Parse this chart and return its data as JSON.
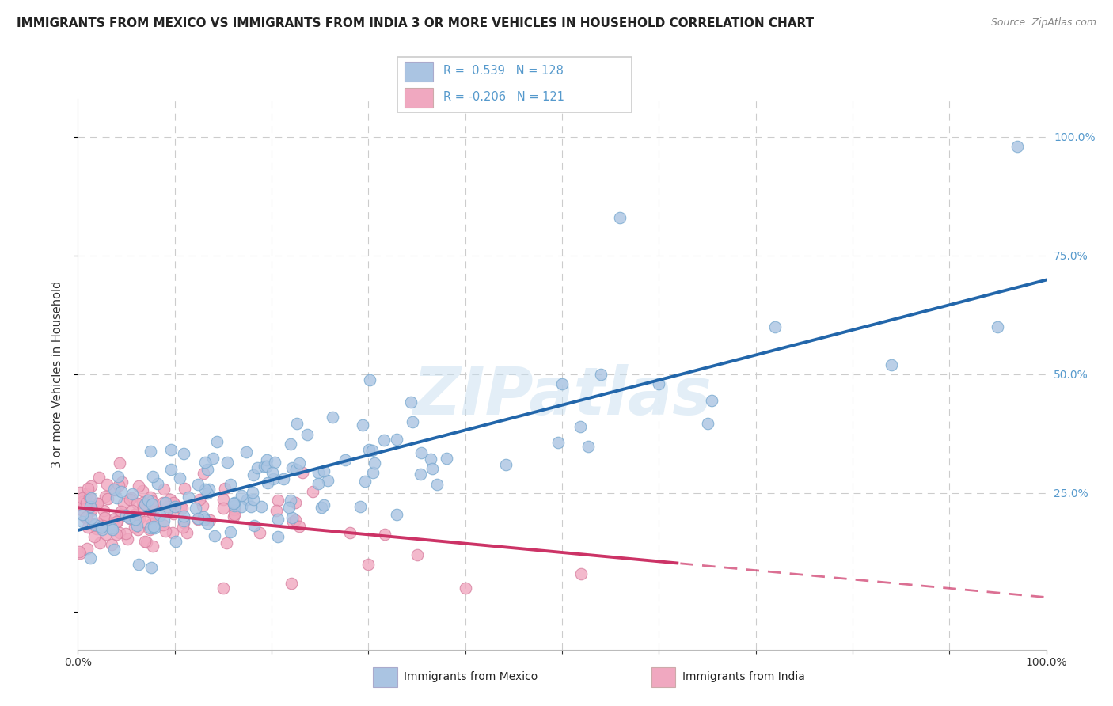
{
  "title": "IMMIGRANTS FROM MEXICO VS IMMIGRANTS FROM INDIA 3 OR MORE VEHICLES IN HOUSEHOLD CORRELATION CHART",
  "source": "Source: ZipAtlas.com",
  "ylabel": "3 or more Vehicles in Household",
  "ytick_values": [
    0.0,
    0.25,
    0.5,
    0.75,
    1.0
  ],
  "xlim": [
    0.0,
    1.0
  ],
  "ylim": [
    -0.08,
    1.08
  ],
  "mexico_R": 0.539,
  "mexico_N": 128,
  "india_R": -0.206,
  "india_N": 121,
  "mexico_color": "#aac4e2",
  "mexico_edge_color": "#7aaad0",
  "mexico_line_color": "#2266aa",
  "india_color": "#f0a8c0",
  "india_edge_color": "#d880a0",
  "india_line_color": "#cc3366",
  "watermark": "ZIPatlas",
  "background_color": "#ffffff",
  "grid_color": "#cccccc",
  "right_tick_color": "#5599cc",
  "label_color": "#333333",
  "mexico_seed": 42,
  "india_seed": 77
}
